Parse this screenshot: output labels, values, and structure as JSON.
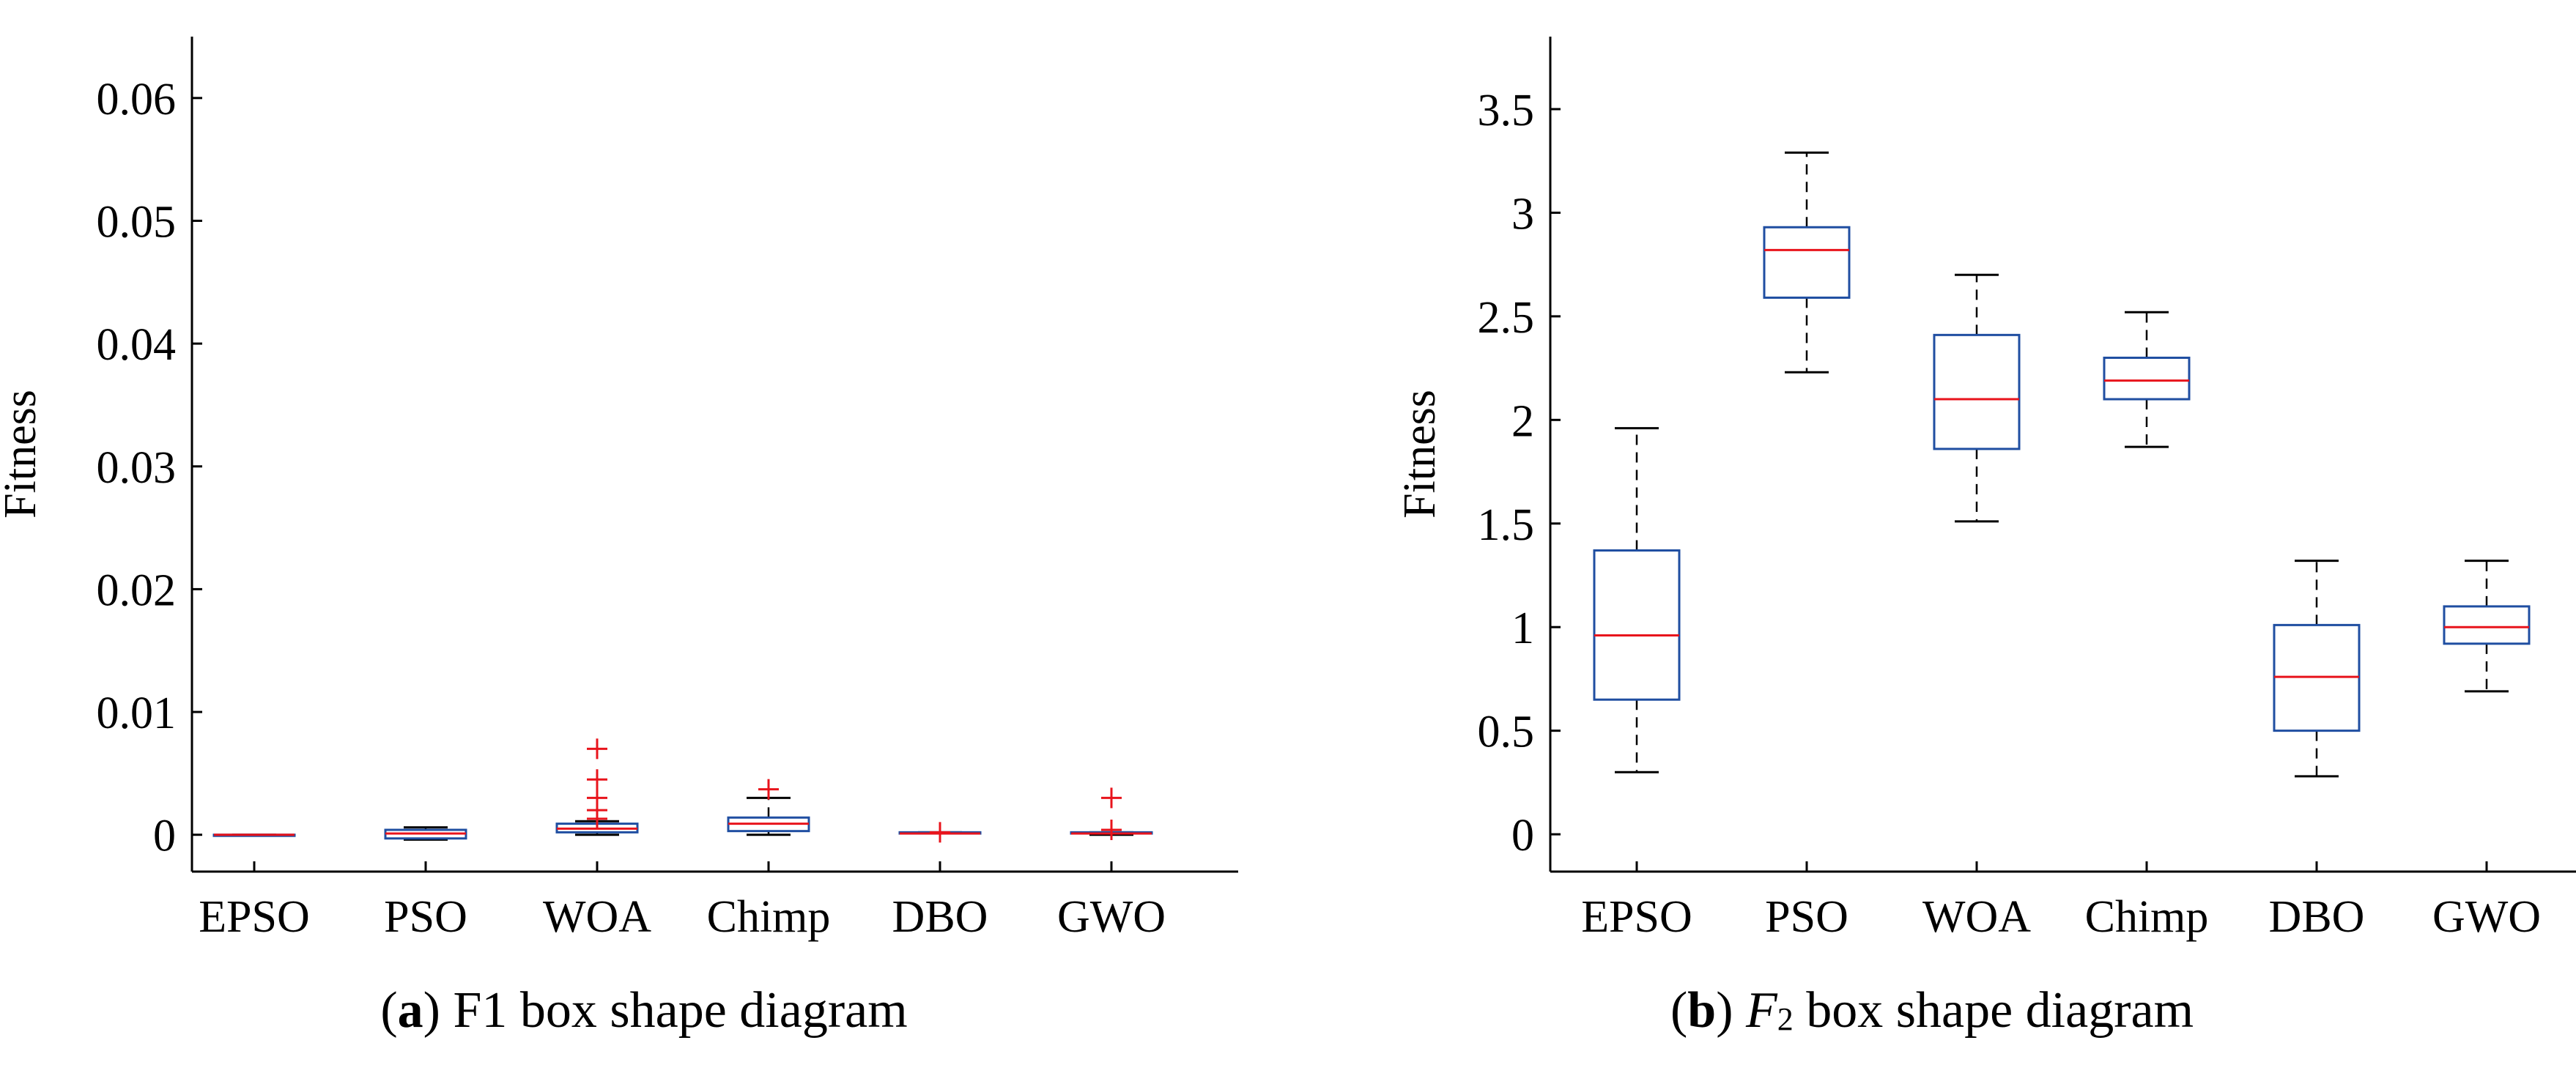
{
  "chart_data": [
    {
      "type": "box",
      "ylabel": "Fitness",
      "ylim": [
        -0.003,
        0.065
      ],
      "yticks": [
        0,
        0.01,
        0.02,
        0.03,
        0.04,
        0.05,
        0.06
      ],
      "ytick_labels": [
        "0",
        "0.01",
        "0.02",
        "0.03",
        "0.04",
        "0.05",
        "0.06"
      ],
      "categories": [
        "EPSO",
        "PSO",
        "WOA",
        "Chimp",
        "DBO",
        "GWO"
      ],
      "boxes": [
        {
          "whisker_low": 0,
          "q1": 0,
          "median": 0,
          "q3": 0,
          "whisker_high": 0,
          "outliers": []
        },
        {
          "whisker_low": -0.0004,
          "q1": -0.0003,
          "median": 0.0001,
          "q3": 0.0004,
          "whisker_high": 0.0006,
          "outliers": []
        },
        {
          "whisker_low": 0,
          "q1": 0.0002,
          "median": 0.0005,
          "q3": 0.0009,
          "whisker_high": 0.0011,
          "outliers": [
            0.0013,
            0.002,
            0.003,
            0.0045,
            0.007
          ]
        },
        {
          "whisker_low": 0,
          "q1": 0.0003,
          "median": 0.0009,
          "q3": 0.0014,
          "whisker_high": 0.003,
          "outliers": [
            0.0037
          ]
        },
        {
          "whisker_low": 0.0001,
          "q1": 0.0001,
          "median": 0.0001,
          "q3": 0.0002,
          "whisker_high": 0.0002,
          "outliers": [
            0.0002
          ]
        },
        {
          "whisker_low": 0,
          "q1": 0.0001,
          "median": 0.0001,
          "q3": 0.0002,
          "whisker_high": 0.0002,
          "outliers": [
            0.0004,
            0.003
          ]
        }
      ],
      "caption": {
        "letter": "a",
        "text": "F1 box shape diagram"
      }
    },
    {
      "type": "box",
      "ylabel": "Fitness",
      "ylim": [
        -0.18,
        3.85
      ],
      "yticks": [
        0,
        0.5,
        1,
        1.5,
        2,
        2.5,
        3,
        3.5
      ],
      "ytick_labels": [
        "0",
        "0.5",
        "1",
        "1.5",
        "2",
        "2.5",
        "3",
        "3.5"
      ],
      "categories": [
        "EPSO",
        "PSO",
        "WOA",
        "Chimp",
        "DBO",
        "GWO"
      ],
      "boxes": [
        {
          "whisker_low": 0.3,
          "q1": 0.65,
          "median": 0.96,
          "q3": 1.37,
          "whisker_high": 1.96,
          "outliers": []
        },
        {
          "whisker_low": 2.23,
          "q1": 2.59,
          "median": 2.82,
          "q3": 2.93,
          "whisker_high": 3.29,
          "outliers": []
        },
        {
          "whisker_low": 1.51,
          "q1": 1.86,
          "median": 2.1,
          "q3": 2.41,
          "whisker_high": 2.7,
          "outliers": []
        },
        {
          "whisker_low": 1.87,
          "q1": 2.1,
          "median": 2.19,
          "q3": 2.3,
          "whisker_high": 2.52,
          "outliers": []
        },
        {
          "whisker_low": 0.28,
          "q1": 0.5,
          "median": 0.76,
          "q3": 1.01,
          "whisker_high": 1.32,
          "outliers": []
        },
        {
          "whisker_low": 0.69,
          "q1": 0.92,
          "median": 1.0,
          "q3": 1.1,
          "whisker_high": 1.32,
          "outliers": []
        }
      ],
      "caption": {
        "letter": "b",
        "symbol": "F",
        "sub": "2",
        "text": "box shape diagram"
      }
    }
  ],
  "colors": {
    "box": "#1f4ea1",
    "median": "#e8141c",
    "whisker": "#000000",
    "outlier": "#e8141c"
  }
}
